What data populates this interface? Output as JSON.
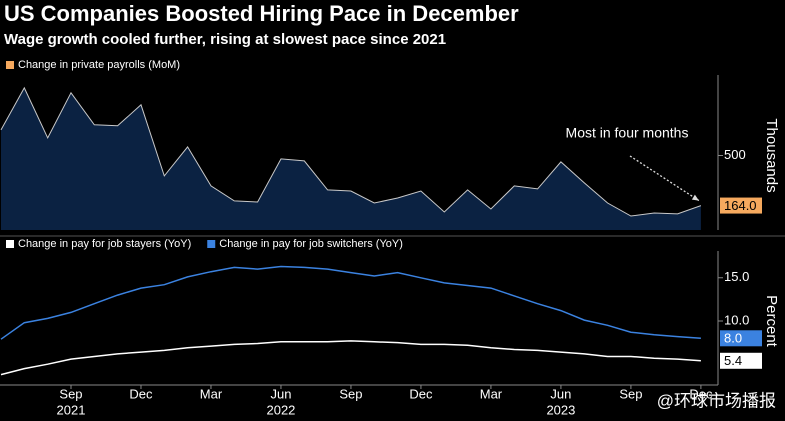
{
  "title": "US Companies Boosted Hiring Pace in December",
  "subtitle": "Wage growth cooled further, rising at slowest pace since 2021",
  "watermark": "@环球市场播报",
  "chart_data": [
    {
      "type": "area",
      "y_axis_label": "Thousands",
      "ylim": [
        0,
        1000
      ],
      "yticks": [
        500
      ],
      "annotation": "Most in four months",
      "series": [
        {
          "name": "Change in private payrolls (MoM)",
          "color": "#f6a95e",
          "values": [
            672,
            954,
            618,
            921,
            706,
            699,
            840,
            363,
            558,
            296,
            195,
            188,
            477,
            464,
            269,
            262,
            181,
            215,
            262,
            121,
            269,
            141,
            296,
            276,
            457,
            316,
            181,
            94,
            114,
            108,
            164
          ],
          "value_labels": [
            null,
            null,
            null,
            null,
            null,
            null,
            null,
            null,
            null,
            null,
            null,
            null,
            null,
            null,
            null,
            null,
            null,
            null,
            null,
            null,
            null,
            null,
            null,
            null,
            null,
            null,
            null,
            null,
            null,
            null,
            "164.0"
          ]
        }
      ]
    },
    {
      "type": "line",
      "y_axis_label": "Percent",
      "ylim": [
        2.6,
        17.4
      ],
      "yticks": [
        {
          "value": 10,
          "label": "10.0"
        },
        {
          "value": 15,
          "label": "15.0"
        }
      ],
      "categories": [
        null,
        null,
        null,
        "Sep",
        null,
        null,
        "Dec",
        null,
        null,
        "Mar",
        null,
        null,
        "Jun",
        null,
        null,
        "Sep",
        null,
        null,
        "Dec",
        null,
        null,
        "Mar",
        null,
        null,
        "Jun",
        null,
        null,
        "Sep",
        null,
        null,
        "Dec"
      ],
      "year_labels": [
        null,
        null,
        null,
        "2021",
        null,
        null,
        null,
        null,
        null,
        null,
        null,
        null,
        "2022",
        null,
        null,
        null,
        null,
        null,
        null,
        null,
        null,
        null,
        null,
        null,
        "2023",
        null,
        null,
        null,
        null,
        null,
        null
      ],
      "series": [
        {
          "name": "Change in pay for job stayers (YoY)",
          "color": "#ffffff",
          "values": [
            3.8,
            4.5,
            5.0,
            5.6,
            5.9,
            6.2,
            6.4,
            6.6,
            6.9,
            7.1,
            7.3,
            7.4,
            7.6,
            7.6,
            7.6,
            7.7,
            7.6,
            7.5,
            7.3,
            7.3,
            7.2,
            6.9,
            6.7,
            6.6,
            6.4,
            6.2,
            5.9,
            5.9,
            5.7,
            5.6,
            5.4
          ],
          "last_value_label": true
        },
        {
          "name": "Change in pay for job switchers (YoY)",
          "color": "#3b82e0",
          "values": [
            7.9,
            9.8,
            10.3,
            11.0,
            12.0,
            13.0,
            13.8,
            14.2,
            15.1,
            15.7,
            16.2,
            16.0,
            16.3,
            16.2,
            16.0,
            15.6,
            15.2,
            15.6,
            15.0,
            14.4,
            14.1,
            13.8,
            12.9,
            12.0,
            11.2,
            10.1,
            9.5,
            8.7,
            8.4,
            8.2,
            8.0
          ],
          "value_labels": [
            null,
            null,
            null,
            null,
            null,
            null,
            null,
            null,
            null,
            null,
            null,
            null,
            null,
            null,
            null,
            null,
            null,
            null,
            null,
            null,
            null,
            null,
            null,
            null,
            null,
            null,
            null,
            null,
            null,
            null,
            "8.0"
          ],
          "last_value_label": true
        }
      ]
    }
  ]
}
